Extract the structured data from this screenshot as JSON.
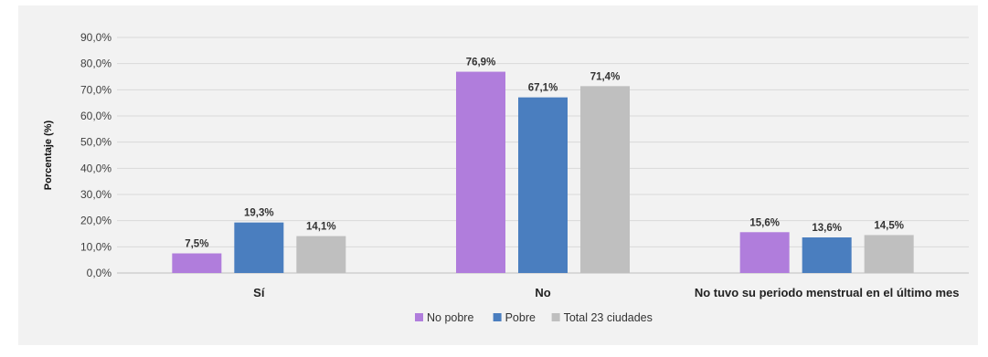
{
  "chart_data": {
    "type": "bar",
    "ylabel": "Porcentaje (%)",
    "ylim": [
      0,
      90
    ],
    "yticks": [
      "0,0%",
      "10,0%",
      "20,0%",
      "30,0%",
      "40,0%",
      "50,0%",
      "60,0%",
      "70,0%",
      "80,0%",
      "90,0%"
    ],
    "categories": [
      "Sí",
      "No",
      "No tuvo su periodo menstrual en el último mes"
    ],
    "series": [
      {
        "name": "No pobre",
        "color": "#b07ddc",
        "values": [
          7.5,
          76.9,
          15.6
        ],
        "labels": [
          "7,5%",
          "76,9%",
          "15,6%"
        ]
      },
      {
        "name": "Pobre",
        "color": "#4a7ebf",
        "values": [
          19.3,
          67.1,
          13.6
        ],
        "labels": [
          "19,3%",
          "67,1%",
          "13,6%"
        ]
      },
      {
        "name": "Total 23 ciudades",
        "color": "#bfbfbf",
        "values": [
          14.1,
          71.4,
          14.5
        ],
        "labels": [
          "14,1%",
          "71,4%",
          "14,5%"
        ]
      }
    ],
    "grid": true,
    "legend_position": "bottom"
  }
}
